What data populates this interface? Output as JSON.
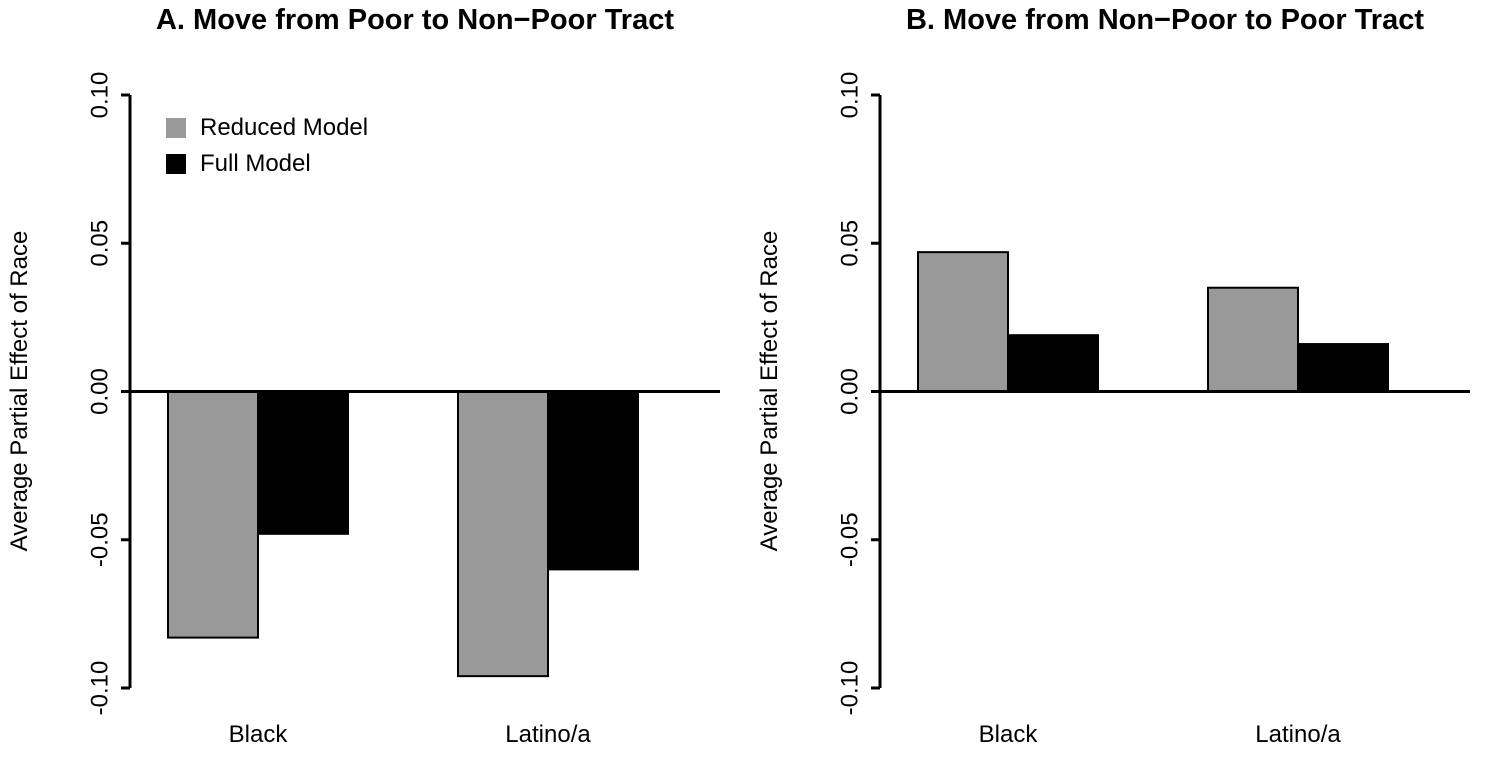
{
  "figure": {
    "background": "#ffffff",
    "text_color": "#000000"
  },
  "chart_data": [
    {
      "type": "bar",
      "panel": "A",
      "title": "A. Move from Poor to Non−Poor Tract",
      "xlabel": "",
      "ylabel": "Average Partial Effect of Race",
      "categories": [
        "Black",
        "Latino/a"
      ],
      "series": [
        {
          "name": "Reduced Model",
          "color": "#999999",
          "values": [
            -0.083,
            -0.096
          ]
        },
        {
          "name": "Full Model",
          "color": "#000000",
          "values": [
            -0.048,
            -0.06
          ]
        }
      ],
      "ylim": [
        -0.1,
        0.1
      ],
      "yticks": [
        -0.1,
        -0.05,
        0.0,
        0.05,
        0.1
      ],
      "ytick_labels": [
        "-0.10",
        "-0.05",
        "0.00",
        "0.05",
        "0.10"
      ],
      "grid": false,
      "legend": {
        "visible": true,
        "position": "top-left",
        "entries": [
          "Reduced Model",
          "Full Model"
        ]
      }
    },
    {
      "type": "bar",
      "panel": "B",
      "title": "B. Move from Non−Poor to Poor Tract",
      "xlabel": "",
      "ylabel": "Average Partial Effect of Race",
      "categories": [
        "Black",
        "Latino/a"
      ],
      "series": [
        {
          "name": "Reduced Model",
          "color": "#999999",
          "values": [
            0.047,
            0.035
          ]
        },
        {
          "name": "Full Model",
          "color": "#000000",
          "values": [
            0.019,
            0.016
          ]
        }
      ],
      "ylim": [
        -0.1,
        0.1
      ],
      "yticks": [
        -0.1,
        -0.05,
        0.0,
        0.05,
        0.1
      ],
      "ytick_labels": [
        "-0.10",
        "-0.05",
        "0.00",
        "0.05",
        "0.10"
      ],
      "grid": false,
      "legend": {
        "visible": false,
        "position": "none",
        "entries": []
      }
    }
  ]
}
